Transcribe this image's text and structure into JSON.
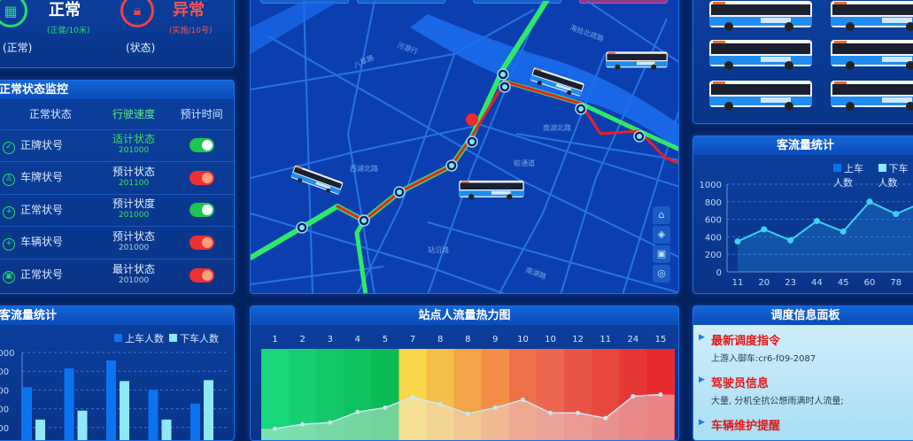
{
  "colors": {
    "accent": "#1f6ee0",
    "normal": "#22e06a",
    "abnormal": "#f04444",
    "route_green": "#2ee86a",
    "route_red": "#ee2020"
  },
  "status": {
    "normal": {
      "icon": "building-icon",
      "title": "正常",
      "sub": "(正健/10米)",
      "label": "(正常)"
    },
    "abnormal": {
      "icon": "lock-icon",
      "title": "异常",
      "sub": "(实施/10号)",
      "label": "(状态)"
    }
  },
  "monitor": {
    "title": "正常状态监控",
    "columns": [
      "正常状态",
      "行驶速度",
      "预计时间"
    ],
    "rows": [
      {
        "icon": "check-circle-icon",
        "name": "正牌状号",
        "status": "适计状态",
        "code": "201000",
        "status_color": "#3ee060",
        "on": true
      },
      {
        "icon": "user-icon",
        "name": "车牌状号",
        "status": "预计状态",
        "code": "201100",
        "status_color": "#e6efff",
        "on": false
      },
      {
        "icon": "plus-circle-icon",
        "name": "正常状号",
        "status": "预计状度",
        "code": "201000",
        "status_color": "#e6efff",
        "on": true
      },
      {
        "icon": "plus-circle-icon",
        "name": "车辆状号",
        "status": "预计状态",
        "code": "201000",
        "status_color": "#e6efff",
        "on": false
      },
      {
        "icon": "monitor-icon",
        "name": "正常状号",
        "status": "最计状态",
        "code": "201000",
        "status_color": "#e6efff",
        "on": false
      }
    ]
  },
  "map": {
    "labels": [
      "海拾北疏路",
      "污源行",
      "八草路",
      "南湖北路",
      "西湖北路",
      "蛟通道",
      "站沿路",
      "南湖路"
    ],
    "controls": [
      "home-icon",
      "layers-icon",
      "lock-icon",
      "locate-icon"
    ]
  },
  "chart_data": [
    {
      "type": "bar",
      "title": "客流量统计",
      "ylim": [
        0,
        1000
      ],
      "yticks": [
        200,
        400,
        600,
        800,
        1000
      ],
      "grid": true,
      "legend": "top-right",
      "series": [
        {
          "name": "上车人数",
          "color": "#0a74f0",
          "values": [
            630,
            830,
            915,
            600,
            455
          ]
        },
        {
          "name": "下车人数",
          "color": "#8ee8f8",
          "values": [
            285,
            380,
            695,
            285,
            705
          ]
        }
      ]
    },
    {
      "type": "heatmap",
      "title": "站点人流量热力图",
      "categories": [
        "1",
        "2",
        "3",
        "4",
        "5",
        "7",
        "8",
        "8",
        "9",
        "10",
        "10",
        "12",
        "11",
        "24",
        "15"
      ],
      "colors": [
        "#18d67a",
        "#16cf72",
        "#12c868",
        "#0ec260",
        "#0abb56",
        "#f7d64a",
        "#f4be48",
        "#f3a446",
        "#f28e48",
        "#ee7048",
        "#ec6650",
        "#e85448",
        "#e6483e",
        "#e63636",
        "#e62a30"
      ],
      "line_values": [
        9,
        14,
        16,
        28,
        33,
        45,
        37,
        26,
        33,
        42,
        27,
        27,
        21,
        46,
        48
      ]
    },
    {
      "type": "line",
      "title": "客流量统计",
      "categories": [
        "11",
        "20",
        "23",
        "44",
        "45",
        "60",
        "78",
        ""
      ],
      "ylim": [
        0,
        1000
      ],
      "yticks": [
        0,
        200,
        400,
        600,
        800,
        1000
      ],
      "grid": true,
      "legend": "top-right",
      "series": [
        {
          "name": "上车人数",
          "color": "#3ad2f5",
          "values": [
            347,
            485,
            360,
            580,
            460,
            800,
            660,
            790
          ]
        }
      ],
      "legend_items": [
        {
          "name": "上车人数",
          "color": "#0a74f0"
        },
        {
          "name": "下车人数",
          "color": "#8ee8f8"
        }
      ]
    }
  ],
  "dispatch": {
    "title": "调度信息面板",
    "items": [
      {
        "title": "最新调度指令",
        "desc": "上游入御车:cr6-f09-2087"
      },
      {
        "title": "驾驶员信息",
        "desc": "大量, 分机全抗公想雨满时人流量;"
      },
      {
        "title": "车辆维护提醒",
        "desc": ""
      }
    ]
  }
}
